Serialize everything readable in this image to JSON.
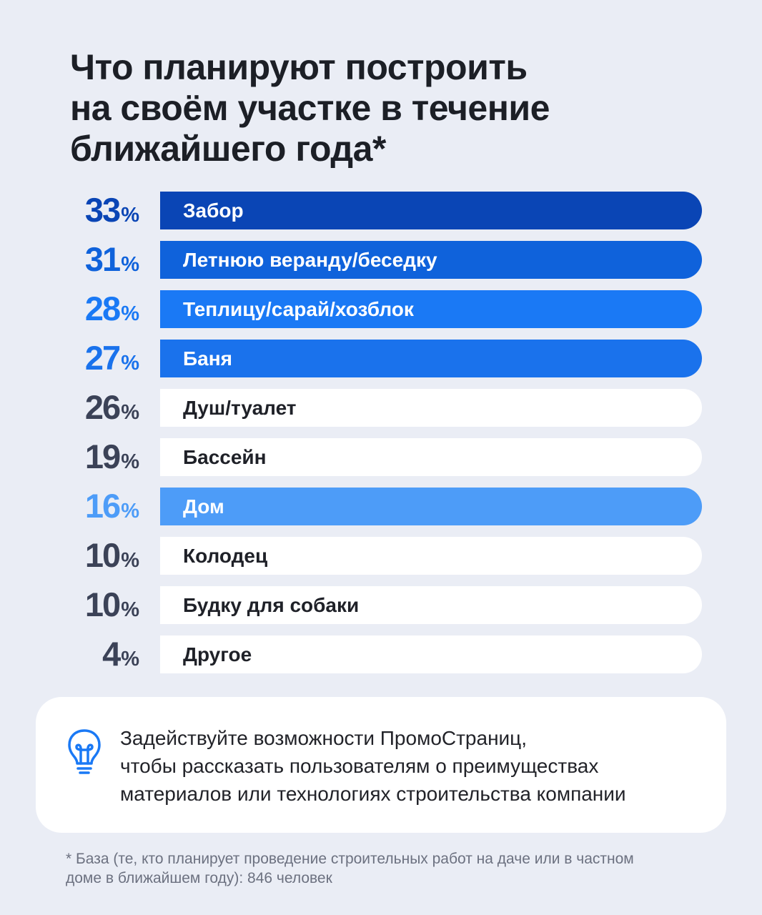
{
  "title_lines": [
    "Что планируют построить",
    "на своём участке в течение",
    "ближайшего года*"
  ],
  "chart_data": {
    "type": "bar",
    "title": "Что планируют построить на своём участке в течение ближайшего года*",
    "categories": [
      "Забор",
      "Летнюю веранду/беседку",
      "Теплицу/сарай/хозблок",
      "Баня",
      "Душ/туалет",
      "Бассейн",
      "Дом",
      "Колодец",
      "Будку для собаки",
      "Другое"
    ],
    "values": [
      33,
      31,
      28,
      27,
      26,
      19,
      16,
      10,
      10,
      4
    ],
    "unit": "%",
    "bars": [
      {
        "label": "Забор",
        "value": "33",
        "bar_color": "#0a45b5",
        "text_color": "#ffffff",
        "value_color": "#0a45b5"
      },
      {
        "label": "Летнюю веранду/беседку",
        "value": "31",
        "bar_color": "#0f62db",
        "text_color": "#ffffff",
        "value_color": "#0f62db"
      },
      {
        "label": "Теплицу/сарай/хозблок",
        "value": "28",
        "bar_color": "#1a79f5",
        "text_color": "#ffffff",
        "value_color": "#1a79f5"
      },
      {
        "label": "Баня",
        "value": "27",
        "bar_color": "#1a72ec",
        "text_color": "#ffffff",
        "value_color": "#1a72ec"
      },
      {
        "label": "Душ/туалет",
        "value": "26",
        "bar_color": "#ffffff",
        "text_color": "#1f2128",
        "value_color": "#3b4257"
      },
      {
        "label": "Бассейн",
        "value": "19",
        "bar_color": "#ffffff",
        "text_color": "#1f2128",
        "value_color": "#3b4257"
      },
      {
        "label": "Дом",
        "value": "16",
        "bar_color": "#4d9cf8",
        "text_color": "#ffffff",
        "value_color": "#4d9cf8"
      },
      {
        "label": "Колодец",
        "value": "10",
        "bar_color": "#ffffff",
        "text_color": "#1f2128",
        "value_color": "#3b4257"
      },
      {
        "label": "Будку для собаки",
        "value": "10",
        "bar_color": "#ffffff",
        "text_color": "#1f2128",
        "value_color": "#3b4257"
      },
      {
        "label": "Другое",
        "value": "4",
        "bar_color": "#ffffff",
        "text_color": "#1f2128",
        "value_color": "#3b4257"
      }
    ],
    "legend": "none",
    "grid": false
  },
  "percent_sign": "%",
  "tip": {
    "icon": "lightbulb-icon",
    "icon_color": "#1a79f5",
    "lines": [
      "Задействуйте возможности ПромоСтраниц,",
      "чтобы рассказать пользователям о преимуществах",
      "материалов или технологиях строительства компании"
    ]
  },
  "footnote_lines": [
    "* База (те, кто планирует проведение строительных работ на даче или в частном",
    "доме в ближайшем году): 846 человек"
  ]
}
